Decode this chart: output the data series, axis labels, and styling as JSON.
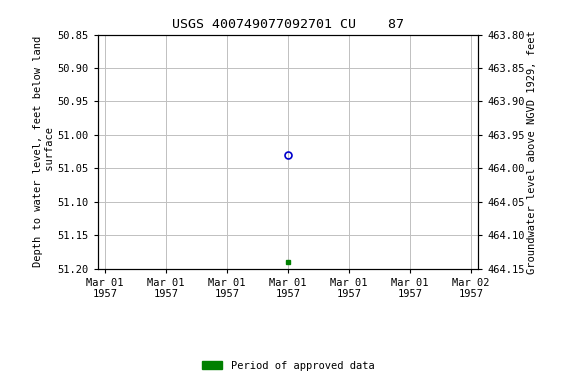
{
  "title": "USGS 400749077092701 CU    87",
  "ylabel_left": "Depth to water level, feet below land\n surface",
  "ylabel_right": "Groundwater level above NGVD 1929, feet",
  "ylim_left": [
    50.85,
    51.2
  ],
  "ylim_right": [
    464.15,
    463.8
  ],
  "yticks_left": [
    50.85,
    50.9,
    50.95,
    51.0,
    51.05,
    51.1,
    51.15,
    51.2
  ],
  "yticks_right": [
    464.15,
    464.1,
    464.05,
    464.0,
    463.95,
    463.9,
    463.85,
    463.8
  ],
  "x_open": [
    0.5
  ],
  "y_open": [
    51.03
  ],
  "x_approved": [
    0.5
  ],
  "y_approved": [
    51.19
  ],
  "xtick_labels": [
    "Mar 01\n1957",
    "Mar 01\n1957",
    "Mar 01\n1957",
    "Mar 01\n1957",
    "Mar 01\n1957",
    "Mar 01\n1957",
    "Mar 02\n1957"
  ],
  "xtick_positions": [
    0.0,
    0.1667,
    0.3333,
    0.5,
    0.6667,
    0.8333,
    1.0
  ],
  "xlim": [
    -0.02,
    1.02
  ],
  "legend_label": "Period of approved data",
  "legend_color": "#008000",
  "open_marker_color": "#0000cc",
  "approved_marker_color": "#008000",
  "bg_color": "#ffffff",
  "grid_color": "#c0c0c0",
  "title_fontsize": 9.5,
  "axis_label_fontsize": 7.5,
  "tick_fontsize": 7.5
}
